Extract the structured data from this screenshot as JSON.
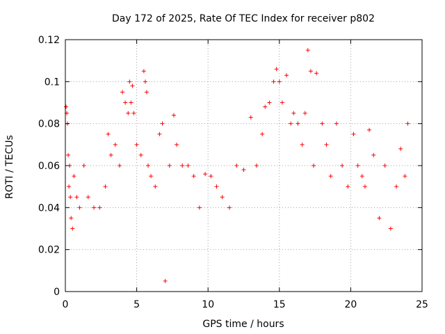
{
  "chart_data": {
    "type": "scatter",
    "title": "Day 172 of 2025, Rate Of TEC Index for receiver p802",
    "xlabel": "GPS time / hours",
    "ylabel": "ROTI / TECUs",
    "xlim": [
      0,
      25
    ],
    "ylim": [
      0,
      0.12
    ],
    "x_ticks": [
      "0",
      "5",
      "10",
      "15",
      "20",
      "25"
    ],
    "y_ticks": [
      "0",
      "0.02",
      "0.04",
      "0.06",
      "0.08",
      "0.1",
      "0.12"
    ],
    "grid": true,
    "marker": "+",
    "color": "#ff0000",
    "series": [
      {
        "x": [
          0.05,
          0.1,
          0.15,
          0.2,
          0.25,
          0.3,
          0.35,
          0.4,
          0.5,
          0.6,
          0.8,
          1.0,
          1.3,
          1.6,
          2.0,
          2.4,
          2.8,
          3.0,
          3.2,
          3.5,
          3.8,
          4.0,
          4.2,
          4.4,
          4.5,
          4.6,
          4.7,
          4.8,
          5.0,
          5.3,
          5.5,
          5.6,
          5.7,
          5.8,
          6.0,
          6.3,
          6.6,
          6.8,
          7.0,
          7.3,
          7.6,
          7.8,
          8.2,
          8.6,
          9.0,
          9.4,
          9.8,
          10.2,
          10.6,
          11.0,
          11.5,
          12.0,
          12.5,
          13.0,
          13.4,
          13.8,
          14.0,
          14.3,
          14.6,
          14.8,
          15.0,
          15.2,
          15.5,
          15.8,
          16.0,
          16.3,
          16.6,
          16.8,
          17.0,
          17.2,
          17.4,
          17.6,
          18.0,
          18.3,
          18.6,
          19.0,
          19.4,
          19.8,
          20.2,
          20.5,
          20.8,
          21.0,
          21.3,
          21.6,
          22.0,
          22.4,
          22.8,
          23.2,
          23.5,
          23.8,
          24.0
        ],
        "y": [
          0.088,
          0.085,
          0.08,
          0.065,
          0.05,
          0.06,
          0.045,
          0.035,
          0.03,
          0.055,
          0.045,
          0.04,
          0.06,
          0.045,
          0.04,
          0.04,
          0.05,
          0.075,
          0.065,
          0.07,
          0.06,
          0.095,
          0.09,
          0.085,
          0.1,
          0.09,
          0.098,
          0.085,
          0.07,
          0.065,
          0.105,
          0.1,
          0.095,
          0.06,
          0.055,
          0.05,
          0.075,
          0.08,
          0.005,
          0.06,
          0.084,
          0.07,
          0.06,
          0.06,
          0.055,
          0.04,
          0.056,
          0.055,
          0.05,
          0.045,
          0.04,
          0.06,
          0.058,
          0.083,
          0.06,
          0.075,
          0.088,
          0.09,
          0.1,
          0.106,
          0.1,
          0.09,
          0.103,
          0.08,
          0.085,
          0.08,
          0.07,
          0.085,
          0.115,
          0.105,
          0.06,
          0.104,
          0.08,
          0.07,
          0.055,
          0.08,
          0.06,
          0.05,
          0.075,
          0.06,
          0.055,
          0.05,
          0.077,
          0.065,
          0.035,
          0.06,
          0.03,
          0.05,
          0.068,
          0.055,
          0.08
        ]
      }
    ]
  }
}
